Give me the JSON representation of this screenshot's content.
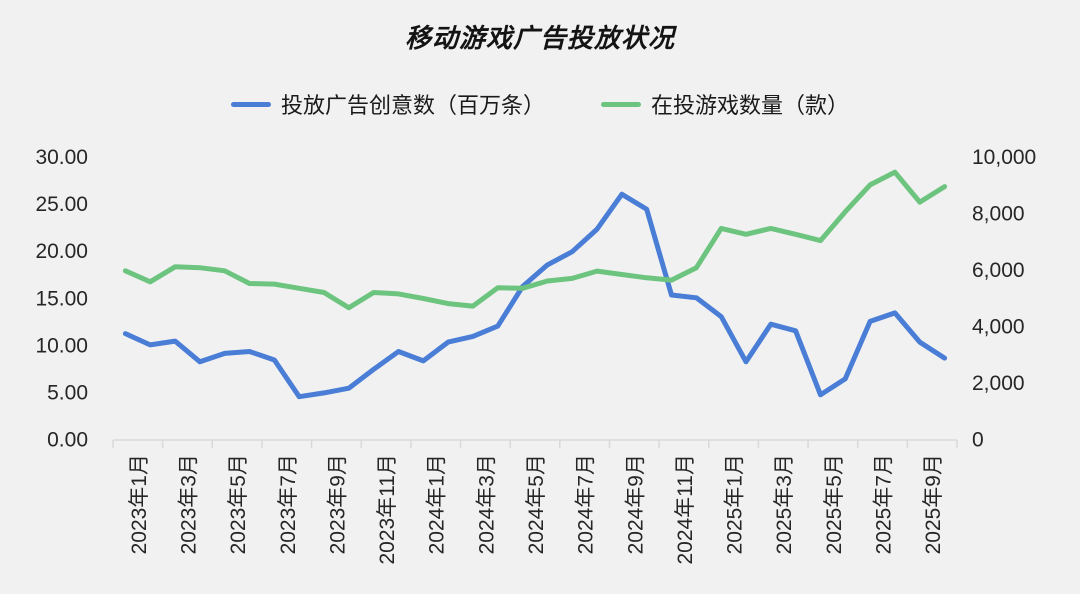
{
  "chart_data": {
    "type": "line",
    "title": "移动游戏广告投放状况",
    "legend_position": "top",
    "grid": false,
    "x_tick_labels": [
      "2023年1月",
      "2023年3月",
      "2023年5月",
      "2023年7月",
      "2023年9月",
      "2023年11月",
      "2024年1月",
      "2024年3月",
      "2024年5月",
      "2024年7月",
      "2024年9月",
      "2024年11月",
      "2025年1月",
      "2025年3月",
      "2025年5月",
      "2025年7月",
      "2025年9月"
    ],
    "left_axis": {
      "max": 30,
      "tick_labels_top_down": [
        "30.00",
        "25.00",
        "20.00",
        "15.00",
        "10.00",
        "5.00",
        "0.00"
      ]
    },
    "right_axis": {
      "max": 10000,
      "tick_labels_top_down": [
        "10,000",
        "8,000",
        "6,000",
        "4,000",
        "2,000",
        "0"
      ]
    },
    "series": [
      {
        "name": "投放广告创意数（百万条）",
        "axis": "left",
        "color": "#4a7ed6",
        "values": [
          11.3,
          10.1,
          10.5,
          8.3,
          9.2,
          9.4,
          8.5,
          4.6,
          5.0,
          5.5,
          7.5,
          9.4,
          8.4,
          10.4,
          11.0,
          12.1,
          16.3,
          18.6,
          20.0,
          22.4,
          26.1,
          24.5,
          15.4,
          15.1,
          13.1,
          8.3,
          12.3,
          11.6,
          4.8,
          6.5,
          12.6,
          13.5,
          10.4,
          8.7
        ]
      },
      {
        "name": "在投游戏数量（款）",
        "axis": "right",
        "color": "#6dc47e",
        "values": [
          5990,
          5600,
          6130,
          6100,
          5990,
          5540,
          5520,
          5370,
          5220,
          4680,
          5220,
          5170,
          5010,
          4830,
          4740,
          5390,
          5370,
          5630,
          5720,
          5980,
          5860,
          5740,
          5660,
          6100,
          7490,
          7280,
          7490,
          7280,
          7060,
          8080,
          9030,
          9480,
          8420,
          8970
        ]
      }
    ],
    "axis_color": "#d9d9d9",
    "label_color": "#262626"
  }
}
